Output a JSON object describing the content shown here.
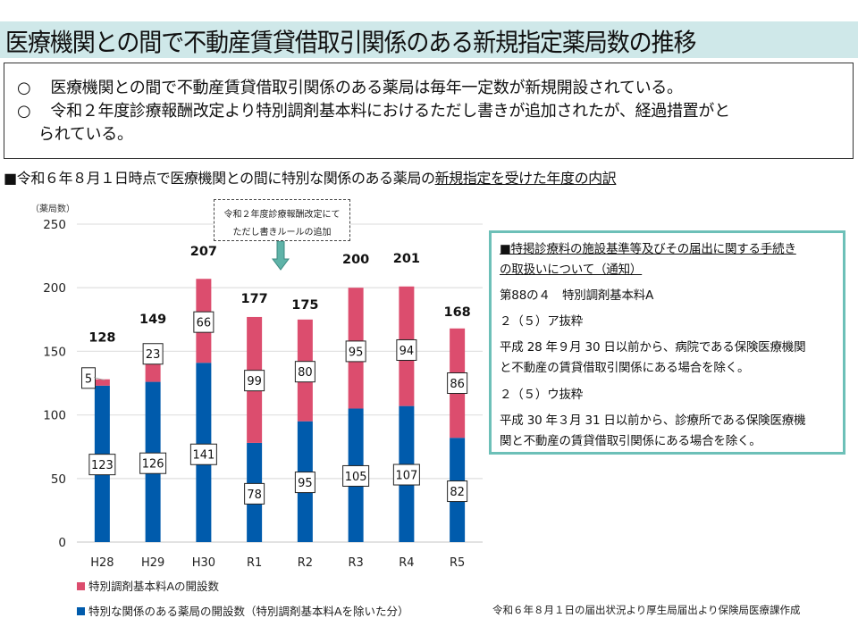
{
  "title": "医療機関との間で不動産賃貸借取引関係のある新規指定薬局数の推移",
  "summary": {
    "bullet": "○",
    "lines": [
      "医療機関との間で不動産賃貸借取引関係のある薬局は毎年一定数が新規開設されている。",
      "令和２年度診療報酬改定より特別調剤基本料におけるただし書きが追加されたが、経過措置がと",
      "られている。"
    ]
  },
  "subheading": {
    "prefix": "■令和６年８月１日時点で医療機関との間に特別な関係のある薬局の",
    "underlined": "新規指定を受けた年度の内訳"
  },
  "callout": {
    "line1": "令和２年度診療報酬改定にて",
    "line2": "ただし書きルールの追加"
  },
  "notice": {
    "heading_line1": "■特掲診療料の施設基準等及びその届出に関する手続き",
    "heading_line2": "の取扱いについて（通知）",
    "item": "第88の４　特別調剤基本料A",
    "section_a": "２（５）ア抜粋",
    "text_a_line1": "平成 28 年９月 30 日以前から、病院である保険医療機関",
    "text_a_line2": "と不動産の賃貸借取引関係にある場合を除く。",
    "section_u": "２（５）ウ抜粋",
    "text_u_line1": "平成 30 年３月 31 日以前から、診療所である保険医療機",
    "text_u_line2": "関と不動産の賃貸借取引関係にある場合を除く。"
  },
  "source": "令和６年８月１日の届出状況より厚生局届出より保険局医療課作成",
  "colors": {
    "title_bg": "#cfe8e9",
    "series_a": "#dc4d6e",
    "series_b": "#005bac",
    "notice_border": "#6dc0b8",
    "arrow": "#5fb3a8"
  },
  "chart_data": {
    "type": "bar",
    "stacked": true,
    "title": "",
    "ylabel": "（薬局数）",
    "xlabel": "",
    "ylim": [
      0,
      250
    ],
    "yticks": [
      0,
      50,
      100,
      150,
      200,
      250
    ],
    "grid": true,
    "legend_position": "bottom-left",
    "categories": [
      "H28",
      "H29",
      "H30",
      "R1",
      "R2",
      "R3",
      "R4",
      "R5"
    ],
    "series": [
      {
        "name": "特別な関係のある薬局の開設数（特別調剤基本料Aを除いた分）",
        "color": "#005bac",
        "values": [
          123,
          126,
          141,
          78,
          95,
          105,
          107,
          82
        ]
      },
      {
        "name": "特別調剤基本料Aの開設数",
        "color": "#dc4d6e",
        "values": [
          5,
          23,
          66,
          99,
          80,
          95,
          94,
          86
        ]
      }
    ],
    "totals": [
      128,
      149,
      207,
      177,
      175,
      200,
      201,
      168
    ],
    "legend_order": [
      "特別調剤基本料Aの開設数",
      "特別な関係のある薬局の開設数（特別調剤基本料Aを除いた分）"
    ]
  }
}
